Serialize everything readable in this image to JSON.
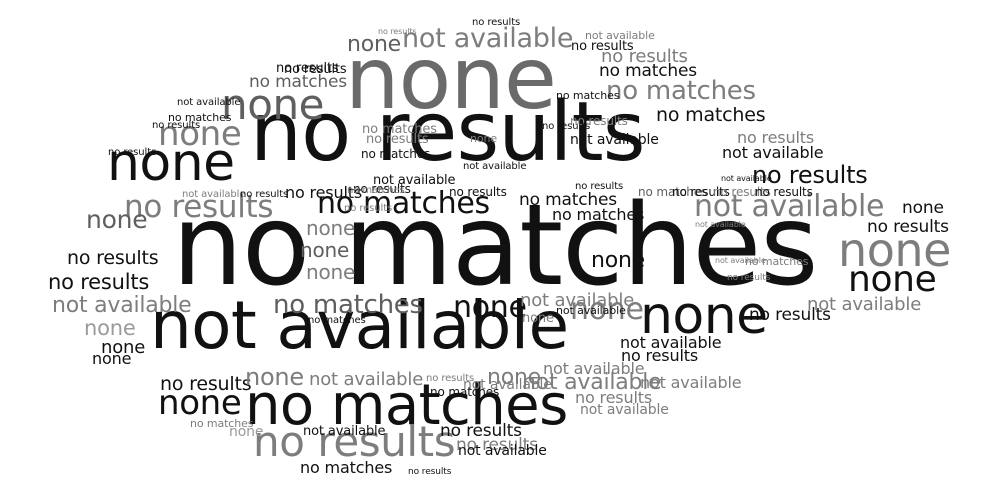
{
  "colors": {
    "black": "#111111",
    "dark_gray": "#5f5f5f",
    "mid_gray": "#7d7d7d",
    "light_gray": "#9a9a9a"
  },
  "words": [
    {
      "text": "no matches",
      "color": "#111111"
    },
    {
      "text": "not available",
      "color": "#111111"
    },
    {
      "text": "no results",
      "color": "#111111"
    },
    {
      "text": "none",
      "color": "#6a6a6a"
    },
    {
      "text": "no matches",
      "color": "#111111"
    },
    {
      "text": "no results",
      "color": "#7d7d7d"
    },
    {
      "text": "none",
      "color": "#111111"
    },
    {
      "text": "none",
      "color": "#5f5f5f"
    },
    {
      "text": "none",
      "color": "#7d7d7d"
    },
    {
      "text": "no results",
      "color": "#7d7d7d"
    },
    {
      "text": "not available",
      "color": "#7d7d7d"
    },
    {
      "text": "none",
      "color": "#5f5f5f"
    },
    {
      "text": "none",
      "color": "#7d7d7d"
    },
    {
      "text": "none",
      "color": "#111111"
    },
    {
      "text": "none",
      "color": "#111111"
    },
    {
      "text": "not available",
      "color": "#7d7d7d"
    },
    {
      "text": "no matches",
      "color": "#111111"
    },
    {
      "text": "no results",
      "color": "#111111"
    },
    {
      "text": "no matches",
      "color": "#7d7d7d"
    },
    {
      "text": "no matches",
      "color": "#111111"
    },
    {
      "text": "no matches",
      "color": "#5f5f5f"
    },
    {
      "text": "no results",
      "color": "#111111"
    },
    {
      "text": "not available",
      "color": "#111111"
    },
    {
      "text": "no results",
      "color": "#111111"
    },
    {
      "text": "no results",
      "color": "#111111"
    },
    {
      "text": "no results",
      "color": "#111111"
    },
    {
      "text": "no results",
      "color": "#111111"
    },
    {
      "text": "not available",
      "color": "#7d7d7d"
    },
    {
      "text": "none",
      "color": "#5f5f5f"
    },
    {
      "text": "none",
      "color": "#9a9a9a"
    },
    {
      "text": "none",
      "color": "#111111"
    },
    {
      "text": "no results",
      "color": "#111111"
    },
    {
      "text": "none",
      "color": "#111111"
    },
    {
      "text": "none",
      "color": "#111111"
    },
    {
      "text": "not available",
      "color": "#7d7d7d"
    },
    {
      "text": "none",
      "color": "#7d7d7d"
    },
    {
      "text": "not available",
      "color": "#7d7d7d"
    },
    {
      "text": "none",
      "color": "#111111"
    },
    {
      "text": "none",
      "color": "#7d7d7d"
    },
    {
      "text": "none",
      "color": "#5f5f5f"
    },
    {
      "text": "none",
      "color": "#7d7d7d"
    },
    {
      "text": "none",
      "color": "#7d7d7d"
    },
    {
      "text": "no matches",
      "color": "#111111"
    },
    {
      "text": "not available",
      "color": "#111111"
    },
    {
      "text": "no results",
      "color": "#111111"
    },
    {
      "text": "no matches",
      "color": "#111111"
    },
    {
      "text": "no matches",
      "color": "#111111"
    },
    {
      "text": "no results",
      "color": "#111111"
    },
    {
      "text": "not available",
      "color": "#111111"
    },
    {
      "text": "no results",
      "color": "#111111"
    },
    {
      "text": "no results",
      "color": "#7d7d7d"
    },
    {
      "text": "none",
      "color": "#111111"
    },
    {
      "text": "not available",
      "color": "#7d7d7d"
    },
    {
      "text": "none",
      "color": "#7d7d7d"
    },
    {
      "text": "not available",
      "color": "#111111"
    },
    {
      "text": "no results",
      "color": "#111111"
    },
    {
      "text": "not available",
      "color": "#7d7d7d"
    },
    {
      "text": "none",
      "color": "#111111"
    },
    {
      "text": "no matches",
      "color": "#111111"
    },
    {
      "text": "no matches",
      "color": "#5f5f5f"
    },
    {
      "text": "no results",
      "color": "#111111"
    },
    {
      "text": "no results",
      "color": "#111111"
    },
    {
      "text": "not available",
      "color": "#111111"
    },
    {
      "text": "not available",
      "color": "#7d7d7d"
    },
    {
      "text": "no matches",
      "color": "#7d7d7d"
    },
    {
      "text": "no results",
      "color": "#7d7d7d"
    },
    {
      "text": "no matches",
      "color": "#111111"
    },
    {
      "text": "no results",
      "color": "#111111"
    },
    {
      "text": "not available",
      "color": "#111111"
    },
    {
      "text": "no results",
      "color": "#7d7d7d"
    },
    {
      "text": "not available",
      "color": "#111111"
    },
    {
      "text": "no results",
      "color": "#111111"
    },
    {
      "text": "no matches",
      "color": "#5f5f5f"
    },
    {
      "text": "no results",
      "color": "#111111"
    },
    {
      "text": "no results",
      "color": "#7d7d7d"
    },
    {
      "text": "no results",
      "color": "#111111"
    },
    {
      "text": "no results",
      "color": "#7d7d7d"
    },
    {
      "text": "not available",
      "color": "#7d7d7d"
    },
    {
      "text": "no matches",
      "color": "#7d7d7d"
    },
    {
      "text": "none",
      "color": "#9a9a9a"
    },
    {
      "text": "none",
      "color": "#7d7d7d"
    },
    {
      "text": "no results",
      "color": "#7d7d7d"
    },
    {
      "text": "not available",
      "color": "#111111"
    },
    {
      "text": "not available",
      "color": "#7d7d7d"
    },
    {
      "text": "not available",
      "color": "#7d7d7d"
    },
    {
      "text": "no results",
      "color": "#7d7d7d"
    },
    {
      "text": "no matches",
      "color": "#111111"
    },
    {
      "text": "no results",
      "color": "#111111"
    },
    {
      "text": "no results",
      "color": "#111111"
    },
    {
      "text": "no matches",
      "color": "#111111"
    },
    {
      "text": "not available",
      "color": "#7d7d7d"
    },
    {
      "text": "no results",
      "color": "#111111"
    },
    {
      "text": "no matches",
      "color": "#111111"
    },
    {
      "text": "no matches",
      "color": "#7d7d7d"
    },
    {
      "text": "no results",
      "color": "#7d7d7d"
    },
    {
      "text": "no matches",
      "color": "#111111"
    },
    {
      "text": "none",
      "color": "#7d7d7d"
    },
    {
      "text": "no results",
      "color": "#111111"
    },
    {
      "text": "not available",
      "color": "#111111"
    },
    {
      "text": "no matches",
      "color": "#7d7d7d"
    },
    {
      "text": "no results",
      "color": "#7d7d7d"
    },
    {
      "text": "not available",
      "color": "#111111"
    },
    {
      "text": "no results",
      "color": "#111111"
    },
    {
      "text": "no results",
      "color": "#111111"
    },
    {
      "text": "no results",
      "color": "#7d7d7d"
    },
    {
      "text": "not available",
      "color": "#7d7d7d"
    },
    {
      "text": "not available",
      "color": "#7d7d7d"
    },
    {
      "text": "no results",
      "color": "#7d7d7d"
    },
    {
      "text": "not available",
      "color": "#7d7d7d"
    }
  ]
}
